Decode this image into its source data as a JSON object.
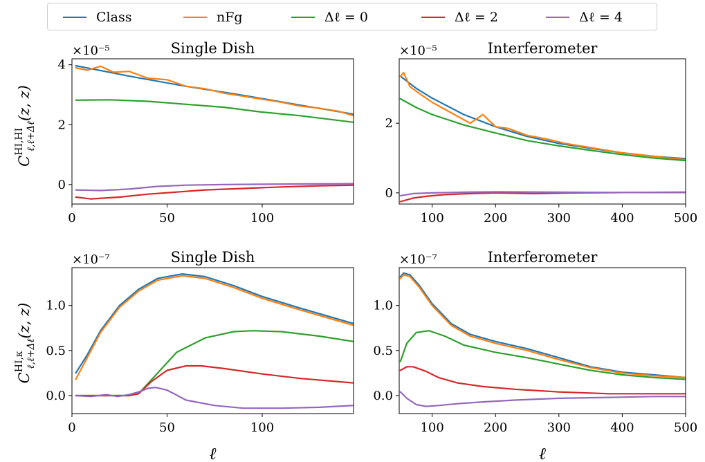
{
  "legend": [
    {
      "label": "Class",
      "color": "#1f77b4"
    },
    {
      "label": "nFg",
      "color": "#ff7f0e"
    },
    {
      "label": "Δℓ = 0",
      "color": "#2ca02c"
    },
    {
      "label": "Δℓ = 2",
      "color": "#d62728"
    },
    {
      "label": "Δℓ = 4",
      "color": "#9467bd"
    }
  ],
  "row_labels": {
    "top_ylabel": "C^{HI,HI}_{ℓ,ℓ+Δℓ}(z, z)",
    "bottom_ylabel": "C^{HI,κ}_{ℓ,ℓ+Δℓ}(z, z)",
    "xlabel": "ℓ"
  },
  "chart_data": [
    {
      "type": "line",
      "title": "Single Dish",
      "multiplier": "×10⁻⁵",
      "xlim": [
        0,
        148
      ],
      "ylim": [
        -0.65,
        4.2
      ],
      "xticks": [
        0,
        50,
        100
      ],
      "xtick_labels": [
        "0",
        "50",
        "100"
      ],
      "yticks": [
        0,
        2,
        4
      ],
      "ytick_labels": [
        "0",
        "2",
        "4"
      ],
      "series": [
        {
          "name": "Class",
          "color": "#1f77b4",
          "x": [
            2,
            30,
            60,
            90,
            120,
            148
          ],
          "y": [
            3.97,
            3.62,
            3.28,
            2.98,
            2.65,
            2.35
          ]
        },
        {
          "name": "nFg",
          "color": "#ff7f0e",
          "x": [
            2,
            8,
            15,
            22,
            30,
            40,
            50,
            60,
            70,
            80,
            90,
            100,
            110,
            120,
            130,
            140,
            148
          ],
          "y": [
            3.9,
            3.82,
            3.95,
            3.75,
            3.78,
            3.55,
            3.5,
            3.28,
            3.2,
            3.05,
            2.95,
            2.85,
            2.75,
            2.62,
            2.55,
            2.45,
            2.3
          ]
        },
        {
          "name": "Δℓ = 0",
          "color": "#2ca02c",
          "x": [
            2,
            20,
            40,
            60,
            80,
            100,
            120,
            148
          ],
          "y": [
            2.82,
            2.83,
            2.78,
            2.68,
            2.58,
            2.42,
            2.3,
            2.08
          ]
        },
        {
          "name": "Δℓ = 2",
          "color": "#d62728",
          "x": [
            2,
            10,
            25,
            40,
            55,
            70,
            90,
            110,
            130,
            148
          ],
          "y": [
            -0.42,
            -0.48,
            -0.42,
            -0.32,
            -0.25,
            -0.18,
            -0.13,
            -0.08,
            -0.04,
            -0.02
          ]
        },
        {
          "name": "Δℓ = 4",
          "color": "#9467bd",
          "x": [
            2,
            15,
            30,
            45,
            60,
            80,
            100,
            120,
            148
          ],
          "y": [
            -0.18,
            -0.2,
            -0.15,
            -0.06,
            -0.02,
            0.0,
            0.01,
            0.02,
            0.03
          ]
        }
      ]
    },
    {
      "type": "line",
      "title": "Interferometer",
      "multiplier": "×10⁻⁵",
      "xlim": [
        48,
        500
      ],
      "ylim": [
        -0.32,
        3.85
      ],
      "xticks": [
        100,
        200,
        300,
        400,
        500
      ],
      "xtick_labels": [
        "100",
        "200",
        "300",
        "400",
        "500"
      ],
      "yticks": [
        0,
        2
      ],
      "ytick_labels": [
        "0",
        "2"
      ],
      "series": [
        {
          "name": "Class",
          "color": "#1f77b4",
          "x": [
            50,
            75,
            100,
            150,
            200,
            250,
            300,
            350,
            400,
            450,
            500
          ],
          "y": [
            3.35,
            3.0,
            2.72,
            2.25,
            1.9,
            1.62,
            1.42,
            1.28,
            1.15,
            1.05,
            0.98
          ]
        },
        {
          "name": "nFg",
          "color": "#ff7f0e",
          "x": [
            50,
            55,
            65,
            80,
            100,
            120,
            140,
            160,
            180,
            200,
            220,
            250,
            280,
            310,
            350,
            400,
            450,
            500
          ],
          "y": [
            3.35,
            3.45,
            3.05,
            2.85,
            2.6,
            2.4,
            2.2,
            2.0,
            2.25,
            1.9,
            1.85,
            1.65,
            1.55,
            1.42,
            1.3,
            1.15,
            1.05,
            0.95
          ]
        },
        {
          "name": "Δℓ = 0",
          "color": "#2ca02c",
          "x": [
            50,
            75,
            100,
            150,
            200,
            250,
            300,
            350,
            400,
            450,
            500
          ],
          "y": [
            2.7,
            2.45,
            2.25,
            1.95,
            1.72,
            1.5,
            1.35,
            1.22,
            1.1,
            1.0,
            0.93
          ]
        },
        {
          "name": "Δℓ = 2",
          "color": "#d62728",
          "x": [
            50,
            70,
            90,
            120,
            160,
            200,
            260,
            320,
            400,
            500
          ],
          "y": [
            -0.25,
            -0.15,
            -0.1,
            -0.05,
            -0.02,
            0.0,
            -0.02,
            0.0,
            0.01,
            0.02
          ]
        },
        {
          "name": "Δℓ = 4",
          "color": "#9467bd",
          "x": [
            50,
            70,
            100,
            150,
            200,
            300,
            400,
            500
          ],
          "y": [
            -0.08,
            -0.02,
            0.0,
            0.02,
            0.03,
            0.02,
            0.01,
            0.01
          ]
        }
      ]
    },
    {
      "type": "line",
      "title": "Single Dish",
      "multiplier": "×10⁻⁷",
      "xlim": [
        0,
        148
      ],
      "ylim": [
        -0.2,
        1.42
      ],
      "xticks": [
        0,
        50,
        100
      ],
      "xtick_labels": [
        "0",
        "50",
        "100"
      ],
      "yticks": [
        0.0,
        0.5,
        1.0
      ],
      "ytick_labels": [
        "0.0",
        "0.5",
        "1.0"
      ],
      "series": [
        {
          "name": "Class",
          "color": "#1f77b4",
          "x": [
            2,
            8,
            15,
            25,
            35,
            45,
            58,
            70,
            85,
            100,
            120,
            148
          ],
          "y": [
            0.25,
            0.45,
            0.72,
            1.0,
            1.18,
            1.3,
            1.35,
            1.32,
            1.22,
            1.1,
            0.97,
            0.8
          ]
        },
        {
          "name": "nFg",
          "color": "#ff7f0e",
          "x": [
            2,
            8,
            15,
            25,
            35,
            45,
            58,
            70,
            85,
            100,
            120,
            148
          ],
          "y": [
            0.18,
            0.42,
            0.7,
            0.98,
            1.16,
            1.28,
            1.33,
            1.3,
            1.2,
            1.08,
            0.95,
            0.78
          ]
        },
        {
          "name": "Δℓ = 0",
          "color": "#2ca02c",
          "x": [
            2,
            10,
            20,
            30,
            35,
            45,
            55,
            70,
            85,
            95,
            110,
            130,
            148
          ],
          "y": [
            0.0,
            0.0,
            0.0,
            0.0,
            0.02,
            0.25,
            0.48,
            0.64,
            0.71,
            0.72,
            0.71,
            0.66,
            0.6
          ]
        },
        {
          "name": "Δℓ = 2",
          "color": "#d62728",
          "x": [
            2,
            10,
            20,
            30,
            35,
            42,
            50,
            60,
            68,
            80,
            100,
            120,
            148
          ],
          "y": [
            0.0,
            0.0,
            0.0,
            0.0,
            0.02,
            0.16,
            0.28,
            0.33,
            0.33,
            0.3,
            0.24,
            0.19,
            0.14
          ]
        },
        {
          "name": "Δℓ = 4",
          "color": "#9467bd",
          "x": [
            2,
            10,
            18,
            24,
            30,
            35,
            40,
            44,
            50,
            60,
            75,
            90,
            110,
            130,
            148
          ],
          "y": [
            0.0,
            -0.01,
            0.01,
            -0.01,
            0.01,
            0.04,
            0.08,
            0.09,
            0.06,
            -0.05,
            -0.11,
            -0.14,
            -0.14,
            -0.13,
            -0.11
          ]
        }
      ]
    },
    {
      "type": "line",
      "title": "Interferometer",
      "multiplier": "×10⁻⁷",
      "xlim": [
        48,
        500
      ],
      "ylim": [
        -0.2,
        1.42
      ],
      "xticks": [
        100,
        200,
        300,
        400,
        500
      ],
      "xtick_labels": [
        "100",
        "200",
        "300",
        "400",
        "500"
      ],
      "yticks": [
        0.0,
        0.5,
        1.0
      ],
      "ytick_labels": [
        "0.0",
        "0.5",
        "1.0"
      ],
      "series": [
        {
          "name": "Class",
          "color": "#1f77b4",
          "x": [
            50,
            55,
            65,
            80,
            100,
            130,
            160,
            200,
            250,
            300,
            350,
            400,
            450,
            500
          ],
          "y": [
            1.32,
            1.36,
            1.34,
            1.22,
            1.02,
            0.8,
            0.68,
            0.6,
            0.52,
            0.42,
            0.32,
            0.26,
            0.23,
            0.2
          ]
        },
        {
          "name": "nFg",
          "color": "#ff7f0e",
          "x": [
            50,
            55,
            65,
            80,
            100,
            130,
            160,
            200,
            250,
            300,
            350,
            400,
            450,
            500
          ],
          "y": [
            1.3,
            1.34,
            1.32,
            1.2,
            1.0,
            0.78,
            0.66,
            0.58,
            0.5,
            0.4,
            0.31,
            0.25,
            0.22,
            0.2
          ]
        },
        {
          "name": "Δℓ = 0",
          "color": "#2ca02c",
          "x": [
            50,
            60,
            75,
            95,
            120,
            150,
            200,
            250,
            300,
            350,
            400,
            450,
            500
          ],
          "y": [
            0.38,
            0.58,
            0.7,
            0.72,
            0.66,
            0.56,
            0.48,
            0.42,
            0.35,
            0.28,
            0.23,
            0.2,
            0.18
          ]
        },
        {
          "name": "Δℓ = 2",
          "color": "#d62728",
          "x": [
            50,
            60,
            70,
            90,
            110,
            140,
            180,
            230,
            300,
            380,
            450,
            500
          ],
          "y": [
            0.28,
            0.32,
            0.32,
            0.27,
            0.2,
            0.14,
            0.1,
            0.07,
            0.04,
            0.02,
            0.02,
            0.02
          ]
        },
        {
          "name": "Δℓ = 4",
          "color": "#9467bd",
          "x": [
            50,
            60,
            75,
            90,
            110,
            140,
            180,
            230,
            300,
            380,
            450,
            500
          ],
          "y": [
            0.04,
            -0.03,
            -0.1,
            -0.12,
            -0.11,
            -0.09,
            -0.07,
            -0.05,
            -0.03,
            -0.02,
            -0.01,
            -0.01
          ]
        }
      ]
    }
  ]
}
